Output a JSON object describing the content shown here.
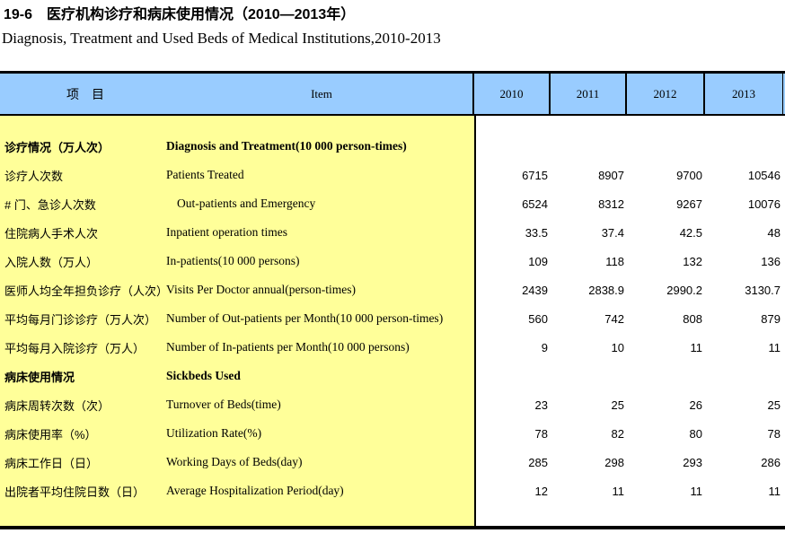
{
  "page": {
    "title_cn": "19-6　医疗机构诊疗和病床使用情况（2010—2013年）",
    "title_en": "Diagnosis, Treatment and Used Beds of Medical Institutions,2010-2013"
  },
  "table": {
    "colors": {
      "header_bg": "#99CCFF",
      "label_bg": "#FFFF99",
      "border": "#000000"
    },
    "header": {
      "item_cn": "项　目",
      "item_en": "Item",
      "years": [
        "2010",
        "2011",
        "2012",
        "2013"
      ]
    },
    "rows": [
      {
        "cn": "诊疗情况（万人次）",
        "en": "Diagnosis and Treatment(10 000 person-times)",
        "bold": true,
        "indent": false,
        "values": [
          "",
          "",
          "",
          ""
        ]
      },
      {
        "cn": "诊疗人次数",
        "en": "Patients Treated",
        "bold": false,
        "indent": false,
        "values": [
          "6715",
          "8907",
          "9700",
          "10546"
        ]
      },
      {
        "cn": "# 门、急诊人次数",
        "en": "Out-patients and Emergency",
        "bold": false,
        "indent": true,
        "values": [
          "6524",
          "8312",
          "9267",
          "10076"
        ]
      },
      {
        "cn": "住院病人手术人次",
        "en": "Inpatient operation times",
        "bold": false,
        "indent": false,
        "values": [
          "33.5",
          "37.4",
          "42.5",
          "48"
        ]
      },
      {
        "cn": "入院人数（万人）",
        "en": "In-patients(10 000 persons)",
        "bold": false,
        "indent": false,
        "values": [
          "109",
          "118",
          "132",
          "136"
        ]
      },
      {
        "cn": "医师人均全年担负诊疗（人次）",
        "en": "Visits Per Doctor annual(person-times)",
        "bold": false,
        "indent": false,
        "values": [
          "2439",
          "2838.9",
          "2990.2",
          "3130.7"
        ]
      },
      {
        "cn": "平均每月门诊诊疗（万人次）",
        "en": "Number of Out-patients per Month(10 000 person-times)",
        "bold": false,
        "indent": false,
        "values": [
          "560",
          "742",
          "808",
          "879"
        ]
      },
      {
        "cn": "平均每月入院诊疗（万人）",
        "en": "Number of In-patients per Month(10 000 persons)",
        "bold": false,
        "indent": false,
        "values": [
          "9",
          "10",
          "11",
          "11"
        ]
      },
      {
        "cn": "病床使用情况",
        "en": "Sickbeds Used",
        "bold": true,
        "indent": false,
        "values": [
          "",
          "",
          "",
          ""
        ]
      },
      {
        "cn": "病床周转次数（次）",
        "en": "Turnover of Beds(time)",
        "bold": false,
        "indent": false,
        "values": [
          "23",
          "25",
          "26",
          "25"
        ]
      },
      {
        "cn": "病床使用率（%）",
        "en": "Utilization Rate(%)",
        "bold": false,
        "indent": false,
        "values": [
          "78",
          "82",
          "80",
          "78"
        ]
      },
      {
        "cn": "病床工作日（日）",
        "en": "Working Days of Beds(day)",
        "bold": false,
        "indent": false,
        "values": [
          "285",
          "298",
          "293",
          "286"
        ]
      },
      {
        "cn": "出院者平均住院日数（日）",
        "en": "Average Hospitalization Period(day)",
        "bold": false,
        "indent": false,
        "values": [
          "12",
          "11",
          "11",
          "11"
        ]
      }
    ]
  }
}
